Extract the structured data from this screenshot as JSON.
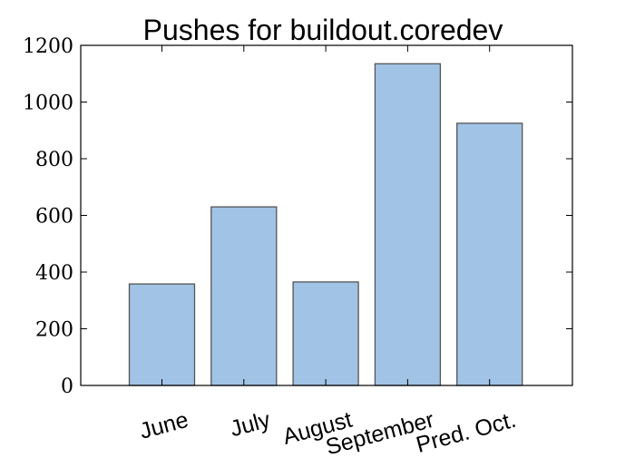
{
  "chart_data": {
    "type": "bar",
    "title": "Pushes for buildout.coredev",
    "xlabel": "",
    "ylabel": "",
    "categories": [
      "June",
      "July",
      "August",
      "September",
      "Pred. Oct."
    ],
    "values": [
      358,
      630,
      365,
      1135,
      925
    ],
    "ylim": [
      0,
      1200
    ],
    "yticks": [
      0,
      200,
      400,
      600,
      800,
      1000,
      1200
    ],
    "xtick_rotation_deg": 15,
    "grid": false,
    "legend": "none",
    "bar_color": "#a1c3e5",
    "bar_edge_color": "#555555"
  }
}
